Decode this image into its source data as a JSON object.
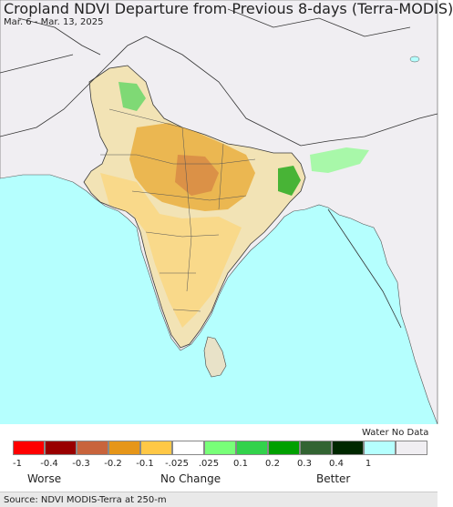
{
  "title": "Cropland NDVI Departure from Previous 8-days (Terra-MODIS)",
  "subtitle": "Mar. 6 - Mar. 13, 2025",
  "colors": {
    "ocean": "#b5fffe",
    "land_no_data": "#f0eef2",
    "borders": "#3a3a3a",
    "water": "#b5fffe"
  },
  "legend": {
    "water_label": "Water",
    "no_data_label": "No Data",
    "bins": [
      {
        "color": "#ff0000"
      },
      {
        "color": "#990000"
      },
      {
        "color": "#c8643c"
      },
      {
        "color": "#e69619"
      },
      {
        "color": "#ffc846"
      },
      {
        "color": "#ffffff"
      },
      {
        "color": "#78ff78"
      },
      {
        "color": "#32d24b"
      },
      {
        "color": "#00a000"
      },
      {
        "color": "#326432"
      },
      {
        "color": "#002800"
      },
      {
        "color": "#b5fffe"
      },
      {
        "color": "#f0eef2"
      }
    ],
    "ticks": [
      "-1",
      "-0.4",
      "-0.3",
      "-0.2",
      "-0.1",
      "-.025",
      ".025",
      "0.1",
      "0.2",
      "0.3",
      "0.4",
      "1"
    ],
    "worse_label": "Worse",
    "no_change_label": "No Change",
    "better_label": "Better"
  },
  "source": "Source: NDVI MODIS-Terra at 250-m"
}
